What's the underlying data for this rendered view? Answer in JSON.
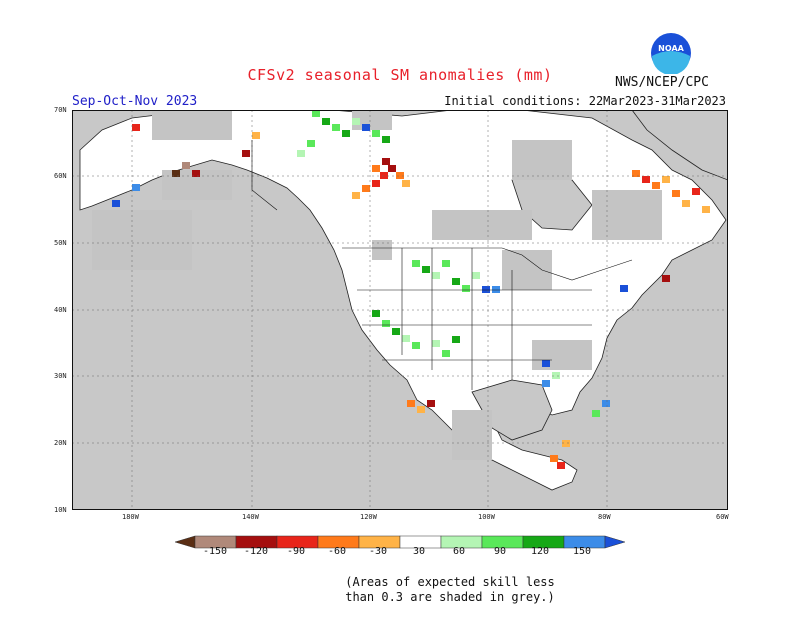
{
  "header": {
    "title": "CFSv2 seasonal SM anomalies (mm)",
    "season": "Sep-Oct-Nov 2023",
    "initial_conditions": "Initial conditions: 22Mar2023-31Mar2023",
    "agency": "NWS/NCEP/CPC",
    "logo_text": "NOAA"
  },
  "map": {
    "lat_labels": [
      "70N",
      "60N",
      "50N",
      "40N",
      "30N",
      "20N",
      "10N"
    ],
    "lon_labels": [
      "180W",
      "140W",
      "120W",
      "100W",
      "80W",
      "60W"
    ],
    "colors": {
      "ocean": "#c8c8c8",
      "land": "#ffffff",
      "low_skill": "#c4c4c4",
      "border": "#111111"
    }
  },
  "legend": {
    "labels": [
      "-150",
      "-120",
      "-90",
      "-60",
      "-30",
      "30",
      "60",
      "90",
      "120",
      "150"
    ],
    "colors": [
      "#5a2e14",
      "#b0897a",
      "#a50f0f",
      "#e8251a",
      "#ff7a1a",
      "#ffb347",
      "#ffffff",
      "#b4f5b4",
      "#5ae85a",
      "#16a816",
      "#3c8ce8",
      "#1a50d8"
    ]
  },
  "footnote": {
    "line1": "(Areas of expected skill less",
    "line2": "than 0.3 are shaded in grey.)"
  }
}
